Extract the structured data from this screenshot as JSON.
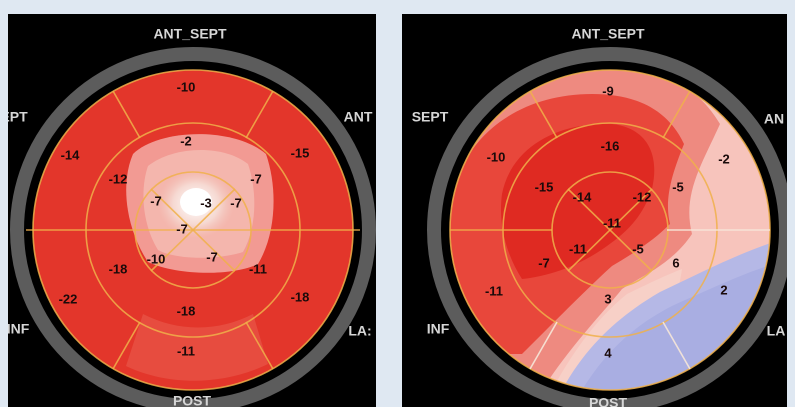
{
  "plots": [
    {
      "orientation": {
        "top": "ANT_SEPT",
        "left": "EPT",
        "right": "ANT",
        "left_low": "INF",
        "right_low": "LA:",
        "bottom": "POST"
      },
      "segments": [
        {
          "id": "ant-sept-basal",
          "value": "-10"
        },
        {
          "id": "ant-basal",
          "value": "-15"
        },
        {
          "id": "sept-basal",
          "value": "-14"
        },
        {
          "id": "lat-basal",
          "value": "-18"
        },
        {
          "id": "inf-basal",
          "value": "-22"
        },
        {
          "id": "post-basal",
          "value": "-11"
        },
        {
          "id": "ant-sept-mid",
          "value": "-2"
        },
        {
          "id": "ant-mid",
          "value": "-7"
        },
        {
          "id": "sept-mid",
          "value": "-12"
        },
        {
          "id": "lat-mid",
          "value": "-11"
        },
        {
          "id": "inf-mid",
          "value": "-18"
        },
        {
          "id": "post-mid",
          "value": "-18"
        },
        {
          "id": "sept-apical",
          "value": "-7"
        },
        {
          "id": "apex",
          "value": "-3"
        },
        {
          "id": "ant-apical",
          "value": "-7"
        },
        {
          "id": "inf-apical",
          "value": "-10"
        },
        {
          "id": "post-apical",
          "value": "-7"
        },
        {
          "id": "lat-apical",
          "value": "-7"
        }
      ]
    },
    {
      "orientation": {
        "top": "ANT_SEPT",
        "left": "SEPT",
        "right": "AN",
        "left_low": "INF",
        "right_low": "LA",
        "bottom": "POST"
      },
      "segments": [
        {
          "id": "ant-sept-basal",
          "value": "-9"
        },
        {
          "id": "ant-basal",
          "value": "-2"
        },
        {
          "id": "sept-basal",
          "value": "-10"
        },
        {
          "id": "lat-basal",
          "value": "2"
        },
        {
          "id": "inf-basal",
          "value": "-11"
        },
        {
          "id": "post-basal",
          "value": "4"
        },
        {
          "id": "ant-sept-mid",
          "value": "-16"
        },
        {
          "id": "ant-mid",
          "value": "-5"
        },
        {
          "id": "sept-mid",
          "value": "-15"
        },
        {
          "id": "lat-mid",
          "value": "6"
        },
        {
          "id": "inf-mid",
          "value": "-7"
        },
        {
          "id": "post-mid",
          "value": "3"
        },
        {
          "id": "sept-apical",
          "value": "-14"
        },
        {
          "id": "ant-apical",
          "value": "-12"
        },
        {
          "id": "apex",
          "value": "-11"
        },
        {
          "id": "inf-apical",
          "value": "-11"
        },
        {
          "id": "post-apical",
          "value": "-5"
        }
      ]
    }
  ]
}
